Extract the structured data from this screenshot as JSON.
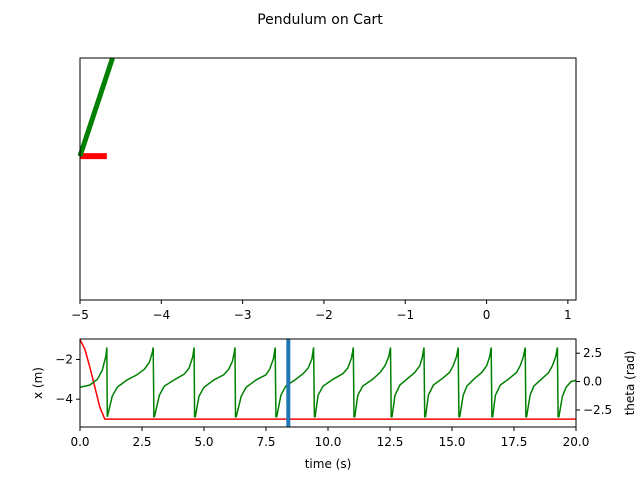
{
  "title": "Pendulum on Cart",
  "colors": {
    "cart": "#ff0000",
    "pendulum": "#008000",
    "x_series": "#ff0000",
    "theta_series": "#008000",
    "time_marker": "#1f77b4"
  },
  "chart_data": [
    {
      "type": "line",
      "name": "animation",
      "xlim": [
        -5,
        1.1
      ],
      "ylim": [
        -2.2,
        1.5
      ],
      "x_ticks": [
        -5,
        -4,
        -3,
        -2,
        -1,
        0,
        1
      ],
      "x_tick_labels": [
        "−5",
        "−4",
        "−3",
        "−2",
        "−1",
        "0",
        "1"
      ],
      "cart": {
        "x": [
          -5.0,
          -4.67
        ],
        "y": [
          0,
          0
        ]
      },
      "pendulum": {
        "x": [
          -5.0,
          -4.6
        ],
        "y": [
          0,
          1.5
        ]
      }
    },
    {
      "type": "line",
      "xlabel": "time (s)",
      "ylabel_left": "x (m)",
      "ylabel_right": "theta (rad)",
      "xlim": [
        0,
        20
      ],
      "ylim_left": [
        -5.4,
        -0.97
      ],
      "ylim_right": [
        -4.0,
        3.75
      ],
      "x_ticks": [
        0,
        2.5,
        5,
        7.5,
        10,
        12.5,
        15,
        17.5,
        20
      ],
      "x_tick_labels": [
        "0.0",
        "2.5",
        "5.0",
        "7.5",
        "10.0",
        "12.5",
        "15.0",
        "17.5",
        "20.0"
      ],
      "y_left_ticks": [
        -2,
        -4
      ],
      "y_left_tick_labels": [
        "−2",
        "−4"
      ],
      "y_right_ticks": [
        2.5,
        0,
        -2.5
      ],
      "y_right_tick_labels": [
        "2.5",
        "0.0",
        "−2.5"
      ],
      "marker_time": 8.4,
      "series": [
        {
          "axis": "left",
          "x": [
            0,
            0.2,
            0.4,
            0.6,
            0.8,
            1.0,
            1.1,
            20
          ],
          "y": [
            -1.0,
            -1.5,
            -2.4,
            -3.4,
            -4.4,
            -5.0,
            -5.0,
            -5.0
          ]
        },
        {
          "axis": "right",
          "x": [
            0,
            0.4,
            0.7,
            0.9,
            1.05,
            1.08,
            1.1,
            1.3,
            1.5,
            1.9,
            2.3,
            2.6,
            2.8,
            2.92,
            2.95,
            2.98,
            3.0,
            3.2,
            3.4,
            3.8,
            4.2,
            4.4,
            4.55,
            4.6,
            4.62,
            4.65,
            4.8,
            5.0,
            5.4,
            5.8,
            6.0,
            6.15,
            6.22,
            6.25,
            6.27,
            6.3,
            6.5,
            6.7,
            7.1,
            7.5,
            7.65,
            7.8,
            7.87,
            7.9,
            7.93,
            8.1,
            8.3,
            8.7,
            9.0,
            9.2,
            9.35,
            9.42,
            9.45,
            9.48,
            9.6,
            9.8,
            10.2,
            10.6,
            10.8,
            10.95,
            11.02,
            11.05,
            11.08,
            11.2,
            11.4,
            11.8,
            12.1,
            12.3,
            12.45,
            12.52,
            12.55,
            12.58,
            12.7,
            12.9,
            13.2,
            13.5,
            13.7,
            13.8,
            13.87,
            13.9,
            13.93,
            14.05,
            14.25,
            14.6,
            14.9,
            15.05,
            15.18,
            15.25,
            15.28,
            15.31,
            15.45,
            15.6,
            15.9,
            16.2,
            16.4,
            16.52,
            16.58,
            16.61,
            16.64,
            16.75,
            16.95,
            17.3,
            17.6,
            17.75,
            17.88,
            17.95,
            17.98,
            18.01,
            18.15,
            18.3,
            18.6,
            18.9,
            19.05,
            19.18,
            19.25,
            19.28,
            19.31,
            19.45,
            19.6,
            19.8,
            20.0
          ],
          "y": [
            -0.5,
            -0.3,
            0.2,
            1.0,
            2.3,
            3.0,
            -3.1,
            -1.3,
            -0.5,
            0.15,
            0.6,
            1.1,
            1.7,
            2.6,
            3.0,
            -3.1,
            -3.1,
            -1.2,
            -0.4,
            0.15,
            0.65,
            1.2,
            2.2,
            3.0,
            -3.1,
            -3.1,
            -1.3,
            -0.5,
            0.15,
            0.6,
            1.1,
            1.8,
            2.6,
            3.0,
            -3.1,
            -3.1,
            -1.3,
            -0.5,
            0.15,
            0.6,
            1.1,
            2.0,
            3.0,
            -3.1,
            -3.1,
            -1.2,
            -0.4,
            0.2,
            0.7,
            1.2,
            2.0,
            3.0,
            -3.1,
            -3.1,
            -1.2,
            -0.4,
            0.2,
            0.7,
            1.2,
            2.1,
            3.0,
            -3.1,
            -3.1,
            -1.2,
            -0.4,
            0.2,
            0.8,
            1.4,
            2.2,
            3.0,
            -3.1,
            -3.1,
            -1.2,
            -0.3,
            0.25,
            0.8,
            1.4,
            2.1,
            3.0,
            -3.1,
            -3.1,
            -1.2,
            -0.3,
            0.25,
            0.8,
            1.4,
            2.2,
            3.0,
            -3.1,
            -3.1,
            -1.2,
            -0.4,
            0.25,
            0.8,
            1.4,
            2.2,
            3.0,
            -3.1,
            -3.1,
            -1.2,
            -0.3,
            0.25,
            0.8,
            1.4,
            2.2,
            3.0,
            -3.1,
            -3.1,
            -1.2,
            -0.4,
            0.2,
            0.8,
            1.4,
            2.2,
            3.0,
            -3.1,
            -3.1,
            -1.3,
            -0.5,
            0.0,
            0.1
          ]
        }
      ]
    }
  ]
}
